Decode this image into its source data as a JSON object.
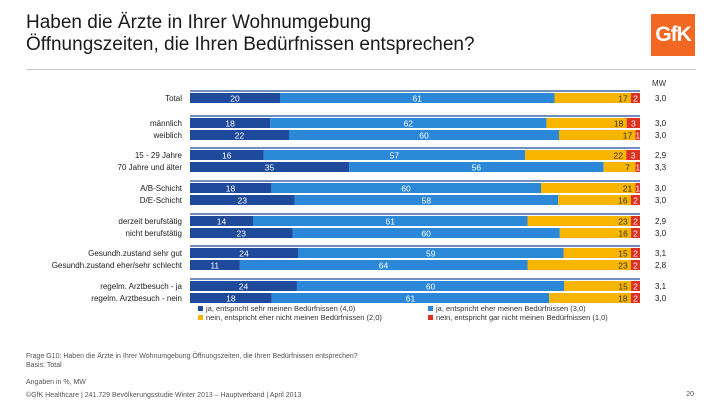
{
  "title": {
    "line1": "Haben die Ärzte in Ihrer Wohnumgebung",
    "line2": "Öffnungszeiten, die Ihren Bedürfnissen entsprechen?"
  },
  "logo": {
    "text": "GfK"
  },
  "mw_label": "MW",
  "footer": {
    "question": "Frage G10: Haben die Ärzte in Ihrer Wohnumgebung Öffnungszeiten, die Ihren Bedürfnissen entsprechen?",
    "basis": "Basis: Total",
    "units": "Angaben in %, MW",
    "source": "©GfK Healthcare | 241.729 Bevölkerungsstudie Winter 2013 – Hauptverband | April 2013",
    "page": "20"
  },
  "colors": {
    "s1": "#1f4a9c",
    "s2": "#2b88d8",
    "s3": "#f7b500",
    "s4": "#e03020",
    "group_line": "#1f4a9c"
  },
  "chart_data": {
    "type": "bar",
    "orientation": "horizontal",
    "stacked": true,
    "xlim": [
      0,
      100
    ],
    "series_names": [
      "ja, entspricht sehr meinen Bedürfnissen (4,0)",
      "ja, entspricht eher meinen Bedürfnissen (3,0)",
      "nein, entspricht eher nicht meinen Bedürfnissen (2,0)",
      "nein, entspricht gar nicht meinen Bedürfnissen (1,0)"
    ],
    "groups": [
      {
        "rows": [
          {
            "label": "Total",
            "values": [
              20,
              61,
              17,
              2
            ],
            "mw": "3,0"
          }
        ]
      },
      {
        "rows": [
          {
            "label": "männlich",
            "values": [
              18,
              62,
              18,
              3
            ],
            "mw": "3,0"
          },
          {
            "label": "weiblich",
            "values": [
              22,
              60,
              17,
              1
            ],
            "mw": "3,0"
          }
        ]
      },
      {
        "rows": [
          {
            "label": "15 - 29 Jahre",
            "values": [
              16,
              57,
              22,
              3
            ],
            "mw": "2,9"
          },
          {
            "label": "70 Jahre und älter",
            "values": [
              35,
              56,
              7,
              1
            ],
            "mw": "3,3"
          }
        ]
      },
      {
        "rows": [
          {
            "label": "A/B-Schicht",
            "values": [
              18,
              60,
              21,
              1
            ],
            "mw": "3,0"
          },
          {
            "label": "D/E-Schicht",
            "values": [
              23,
              58,
              16,
              2
            ],
            "mw": "3,0"
          }
        ]
      },
      {
        "rows": [
          {
            "label": "derzeit berufstätig",
            "values": [
              14,
              61,
              23,
              2
            ],
            "mw": "2,9"
          },
          {
            "label": "nicht berufstätig",
            "values": [
              23,
              60,
              16,
              2
            ],
            "mw": "3,0"
          }
        ]
      },
      {
        "rows": [
          {
            "label": "Gesundh.zustand sehr gut",
            "values": [
              24,
              59,
              15,
              2
            ],
            "mw": "3,1"
          },
          {
            "label": "Gesundh.zustand eher/sehr schlecht",
            "values": [
              11,
              64,
              23,
              2
            ],
            "mw": "2,8"
          }
        ]
      },
      {
        "rows": [
          {
            "label": "regelm. Arztbesuch - ja",
            "values": [
              24,
              60,
              15,
              2
            ],
            "mw": "3,1"
          },
          {
            "label": "regelm. Arztbesuch - nein",
            "values": [
              18,
              61,
              18,
              2
            ],
            "mw": "3,0"
          }
        ]
      }
    ]
  }
}
